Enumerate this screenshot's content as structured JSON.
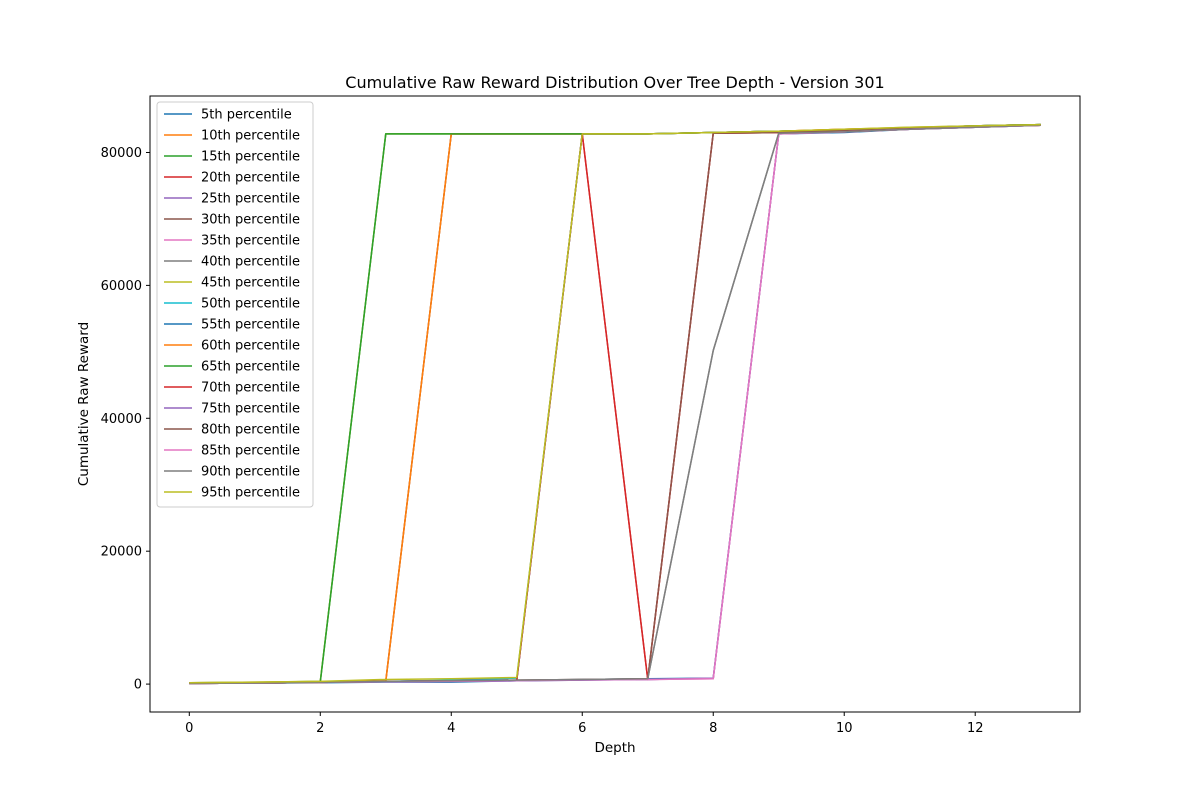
{
  "chart_data": {
    "type": "line",
    "title": "Cumulative Raw Reward Distribution Over Tree Depth - Version 301",
    "xlabel": "Depth",
    "ylabel": "Cumulative Raw Reward",
    "xlim": [
      -0.6,
      13.6
    ],
    "ylim": [
      -4200,
      88500
    ],
    "xticks": [
      0,
      2,
      4,
      6,
      8,
      10,
      12
    ],
    "yticks": [
      0,
      20000,
      40000,
      60000,
      80000
    ],
    "grid": false,
    "legend_position": "upper-left",
    "x": [
      0,
      1,
      2,
      3,
      4,
      5,
      6,
      7,
      8,
      9,
      10,
      11,
      12,
      13
    ],
    "series": [
      {
        "name": "5th percentile",
        "color": "#1f77b4",
        "values": [
          100,
          150,
          200,
          300,
          300,
          500,
          700,
          800,
          900,
          82800,
          83000,
          83500,
          83800,
          84100
        ]
      },
      {
        "name": "10th percentile",
        "color": "#ff7f0e",
        "values": [
          150,
          200,
          300,
          500,
          82800,
          82800,
          82800,
          82800,
          83000,
          83200,
          83500,
          83700,
          84000,
          84200
        ]
      },
      {
        "name": "15th percentile",
        "color": "#2ca02c",
        "values": [
          200,
          250,
          400,
          82800,
          82800,
          82800,
          82800,
          82800,
          83000,
          83200,
          83400,
          83700,
          84000,
          84200
        ]
      },
      {
        "name": "20th percentile",
        "color": "#d62728",
        "values": [
          100,
          150,
          250,
          400,
          500,
          600,
          82800,
          700,
          82900,
          83000,
          83300,
          83600,
          83900,
          84100
        ]
      },
      {
        "name": "25th percentile",
        "color": "#9467bd",
        "values": [
          100,
          150,
          250,
          350,
          400,
          500,
          600,
          700,
          900,
          82800,
          83100,
          83500,
          83800,
          84100
        ]
      },
      {
        "name": "30th percentile",
        "color": "#8c564b",
        "values": [
          100,
          150,
          250,
          400,
          82800,
          82800,
          82800,
          82800,
          83000,
          83200,
          83400,
          83700,
          84000,
          84200
        ]
      },
      {
        "name": "35th percentile",
        "color": "#e377c2",
        "values": [
          100,
          150,
          250,
          350,
          450,
          550,
          650,
          700,
          800,
          82800,
          83100,
          83500,
          83800,
          84100
        ]
      },
      {
        "name": "40th percentile",
        "color": "#7f7f7f",
        "values": [
          100,
          150,
          250,
          400,
          500,
          600,
          700,
          800,
          50200,
          82900,
          83100,
          83500,
          83800,
          84100
        ]
      },
      {
        "name": "45th percentile",
        "color": "#bcbd22",
        "values": [
          200,
          300,
          400,
          82800,
          82800,
          82800,
          82800,
          82800,
          83000,
          83200,
          83500,
          83800,
          84000,
          84200
        ]
      },
      {
        "name": "50th percentile",
        "color": "#17becf",
        "values": [
          100,
          200,
          300,
          400,
          600,
          900,
          82800,
          82800,
          83000,
          83200,
          83400,
          83700,
          84000,
          84200
        ]
      },
      {
        "name": "55th percentile",
        "color": "#1f77b4",
        "values": [
          100,
          150,
          250,
          400,
          500,
          600,
          82800,
          82800,
          83000,
          83200,
          83400,
          83700,
          84000,
          84200
        ]
      },
      {
        "name": "60th percentile",
        "color": "#ff7f0e",
        "values": [
          150,
          200,
          300,
          400,
          82800,
          82800,
          82800,
          82800,
          83000,
          83200,
          83500,
          83700,
          84000,
          84200
        ]
      },
      {
        "name": "65th percentile",
        "color": "#2ca02c",
        "values": [
          150,
          200,
          300,
          82800,
          82800,
          82800,
          82800,
          82800,
          83000,
          83200,
          83400,
          83700,
          84000,
          84200
        ]
      },
      {
        "name": "70th percentile",
        "color": "#d62728",
        "values": [
          100,
          150,
          250,
          400,
          500,
          600,
          82800,
          700,
          82900,
          83000,
          83300,
          83600,
          83900,
          84100
        ]
      },
      {
        "name": "75th percentile",
        "color": "#9467bd",
        "values": [
          100,
          150,
          250,
          350,
          400,
          500,
          600,
          700,
          900,
          82800,
          83100,
          83500,
          83800,
          84100
        ]
      },
      {
        "name": "80th percentile",
        "color": "#8c564b",
        "values": [
          100,
          150,
          250,
          400,
          500,
          600,
          700,
          800,
          82900,
          83000,
          83300,
          83600,
          83900,
          84100
        ]
      },
      {
        "name": "85th percentile",
        "color": "#e377c2",
        "values": [
          100,
          150,
          250,
          350,
          450,
          550,
          650,
          700,
          800,
          82800,
          83100,
          83500,
          83800,
          84100
        ]
      },
      {
        "name": "90th percentile",
        "color": "#7f7f7f",
        "values": [
          100,
          150,
          250,
          400,
          500,
          600,
          700,
          800,
          50200,
          82900,
          83100,
          83500,
          83800,
          84100
        ]
      },
      {
        "name": "95th percentile",
        "color": "#bcbd22",
        "values": [
          200,
          300,
          400,
          700,
          800,
          1000,
          82800,
          82800,
          83000,
          83200,
          83500,
          83800,
          84000,
          84200
        ]
      }
    ]
  }
}
